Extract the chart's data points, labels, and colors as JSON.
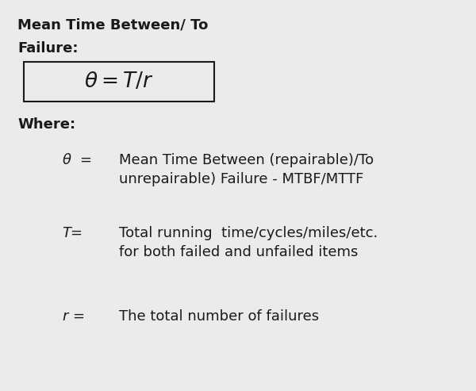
{
  "background_color": "#ebebeb",
  "title_line1": "Mean Time Between/ To",
  "title_line2": "Failure:",
  "where_label": "Where:",
  "definitions": [
    {
      "symbol_math": "$\\theta$  =",
      "text_line1": "Mean Time Between (repairable)/To",
      "text_line2": "unrepairable) Failure - MTBF/MTTF"
    },
    {
      "symbol_math": "T=",
      "text_line1": "Total running  time/cycles/miles/etc.",
      "text_line2": "for both failed and unfailed items"
    },
    {
      "symbol_math": "r =",
      "text_line1": "The total number of failures",
      "text_line2": ""
    }
  ],
  "text_color": "#1a1a1a",
  "box_edge_color": "#1a1a1a",
  "title_fontsize": 13,
  "formula_fontsize": 19,
  "where_fontsize": 13,
  "def_symbol_fontsize": 13,
  "def_text_fontsize": 13
}
